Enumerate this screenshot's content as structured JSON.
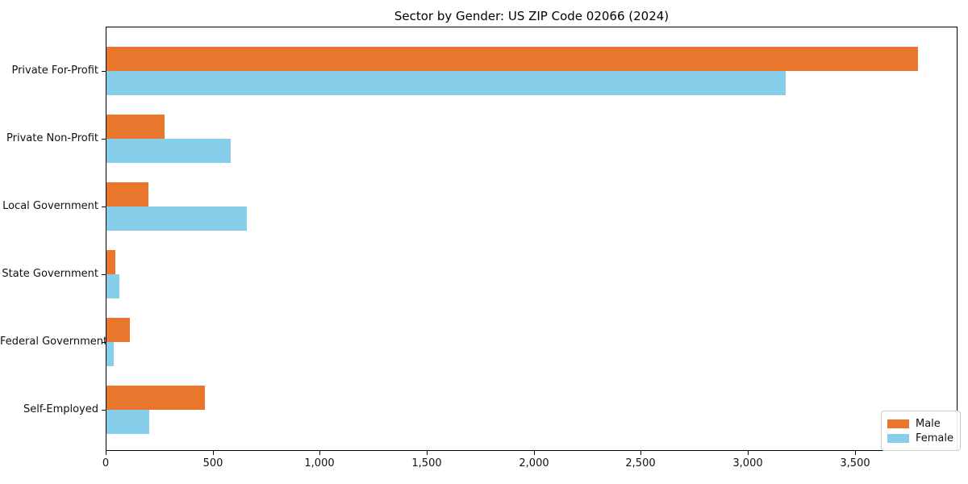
{
  "chart_data": {
    "type": "bar",
    "orientation": "horizontal",
    "title": "Sector by Gender: US ZIP Code 02066 (2024)",
    "xlabel": "",
    "ylabel": "",
    "categories": [
      "Private For-Profit",
      "Private Non-Profit",
      "Local Government",
      "State Government",
      "Federal Government",
      "Self-Employed"
    ],
    "series": [
      {
        "name": "Male",
        "color": "#e8762d",
        "values": [
          3790,
          270,
          195,
          40,
          110,
          460
        ]
      },
      {
        "name": "Female",
        "color": "#87ceeb",
        "values": [
          3175,
          580,
          655,
          60,
          35,
          200
        ]
      }
    ],
    "xlim": [
      0,
      3980
    ],
    "xticks": [
      0,
      500,
      1000,
      1500,
      2000,
      2500,
      3000,
      3500
    ],
    "xtick_labels": [
      "0",
      "500",
      "1,000",
      "1,500",
      "2,000",
      "2,500",
      "3,000",
      "3,500"
    ],
    "grid": false,
    "legend_position": "lower right",
    "background_color": "#ffffff",
    "spine_color": "#000000"
  }
}
